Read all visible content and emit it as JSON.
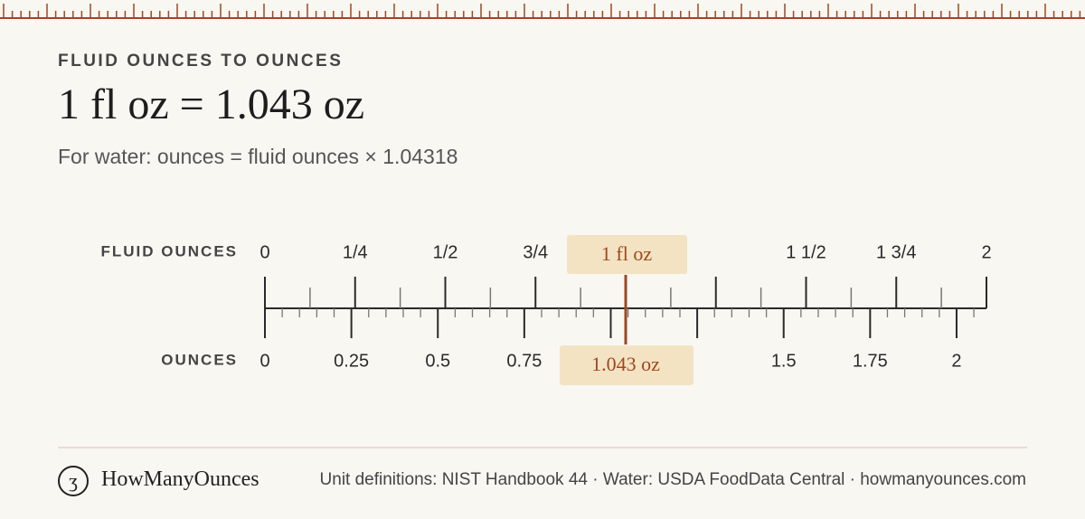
{
  "header": {
    "eyebrow": "FLUID OUNCES TO OUNCES",
    "title": "1 fl oz = 1.043 oz",
    "formula": "For water: ounces = fluid ounces ×",
    "factor": 1.04318
  },
  "ruler": {
    "top": {
      "label": "FLUID OUNCES",
      "ticks": [
        0,
        {
          "value": 0.25,
          "label": "1/4"
        },
        {
          "value": 0.5,
          "label": "1/2"
        },
        {
          "value": 0.75,
          "label": "3/4"
        },
        {
          "value": 1.5,
          "label": "1 1/2"
        },
        {
          "value": 1.75,
          "label": "1 3/4"
        },
        2
      ]
    },
    "bottom": {
      "label": "OUNCES",
      "ticks": [
        0,
        0.25,
        0.5,
        0.75,
        1.5,
        1.75,
        2
      ]
    },
    "marker": {
      "value": 1,
      "label": "1 fl oz",
      "converted_label": "1.043 oz"
    }
  },
  "footer": {
    "brand": "HowManyOunces",
    "source": "Unit definitions: NIST Handbook 44 · Water: USDA FoodData Central · howmanyounces.com"
  }
}
